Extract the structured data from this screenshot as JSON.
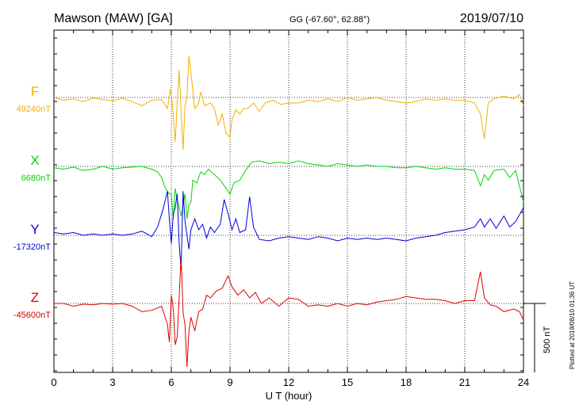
{
  "header": {
    "station": "Mawson (MAW)  [GA]",
    "coords": "GG (-67.60°,  62.88°)",
    "date": "2019/07/10"
  },
  "side_note": "Plotted at 2019/08/10 01:36 UT",
  "scale_label": "500 nT",
  "chart_data": {
    "type": "line",
    "xlabel": "U T (hour)",
    "xlim": [
      0,
      24
    ],
    "xticks": [
      "0",
      "3",
      "6",
      "9",
      "12",
      "15",
      "18",
      "21",
      "24"
    ],
    "scale_bar_nT": 500,
    "grid": true,
    "series": [
      {
        "name": "F",
        "baseline_label": "49240nT",
        "baseline_nT": 49240,
        "color": "#f5b000",
        "points": [
          [
            0,
            0
          ],
          [
            0.5,
            -20
          ],
          [
            1,
            -10
          ],
          [
            1.5,
            -30
          ],
          [
            2,
            -5
          ],
          [
            2.5,
            -15
          ],
          [
            3,
            -25
          ],
          [
            3.5,
            -5
          ],
          [
            4,
            -30
          ],
          [
            4.5,
            -60
          ],
          [
            5,
            -20
          ],
          [
            5.5,
            -15
          ],
          [
            5.8,
            -80
          ],
          [
            5.95,
            60
          ],
          [
            6.05,
            -40
          ],
          [
            6.2,
            -320
          ],
          [
            6.3,
            -40
          ],
          [
            6.4,
            200
          ],
          [
            6.5,
            -100
          ],
          [
            6.6,
            -380
          ],
          [
            6.7,
            -60
          ],
          [
            6.8,
            0
          ],
          [
            6.9,
            300
          ],
          [
            7.0,
            180
          ],
          [
            7.2,
            -80
          ],
          [
            7.4,
            -40
          ],
          [
            7.5,
            40
          ],
          [
            7.7,
            -60
          ],
          [
            8.0,
            -40
          ],
          [
            8.2,
            -80
          ],
          [
            8.4,
            -200
          ],
          [
            8.6,
            -120
          ],
          [
            8.8,
            -260
          ],
          [
            9.0,
            -290
          ],
          [
            9.1,
            -160
          ],
          [
            9.3,
            -90
          ],
          [
            9.5,
            -120
          ],
          [
            9.7,
            -80
          ],
          [
            9.9,
            -80
          ],
          [
            10.2,
            -40
          ],
          [
            10.5,
            -100
          ],
          [
            10.8,
            -40
          ],
          [
            11.2,
            -20
          ],
          [
            11.6,
            -50
          ],
          [
            12.0,
            -40
          ],
          [
            12.5,
            -40
          ],
          [
            13.0,
            -20
          ],
          [
            13.5,
            -30
          ],
          [
            14.0,
            -10
          ],
          [
            14.5,
            -30
          ],
          [
            15.0,
            0
          ],
          [
            15.5,
            -20
          ],
          [
            16.0,
            -10
          ],
          [
            16.5,
            0
          ],
          [
            17.0,
            -20
          ],
          [
            17.5,
            -30
          ],
          [
            18.0,
            -40
          ],
          [
            18.5,
            -30
          ],
          [
            19.0,
            -10
          ],
          [
            19.5,
            -20
          ],
          [
            20.0,
            -10
          ],
          [
            20.5,
            -20
          ],
          [
            21.0,
            -20
          ],
          [
            21.5,
            -40
          ],
          [
            21.8,
            -120
          ],
          [
            22.0,
            -300
          ],
          [
            22.2,
            -40
          ],
          [
            22.5,
            -10
          ],
          [
            23.0,
            10
          ],
          [
            23.5,
            -10
          ],
          [
            23.8,
            20
          ],
          [
            24.0,
            -60
          ]
        ]
      },
      {
        "name": "X",
        "baseline_label": "6680nT",
        "baseline_nT": 6680,
        "color": "#00d800",
        "points": [
          [
            0,
            -10
          ],
          [
            0.5,
            -20
          ],
          [
            1,
            -5
          ],
          [
            1.5,
            -30
          ],
          [
            2,
            -20
          ],
          [
            2.5,
            0
          ],
          [
            3,
            -20
          ],
          [
            3.5,
            -10
          ],
          [
            4,
            -5
          ],
          [
            4.5,
            0
          ],
          [
            5,
            -20
          ],
          [
            5.3,
            -40
          ],
          [
            5.5,
            -80
          ],
          [
            5.7,
            -160
          ],
          [
            5.9,
            -200
          ],
          [
            6.0,
            -200
          ],
          [
            6.1,
            -380
          ],
          [
            6.2,
            -160
          ],
          [
            6.3,
            -240
          ],
          [
            6.4,
            -300
          ],
          [
            6.5,
            -360
          ],
          [
            6.6,
            -280
          ],
          [
            6.7,
            -200
          ],
          [
            6.8,
            -380
          ],
          [
            6.9,
            -280
          ],
          [
            7.0,
            -260
          ],
          [
            7.1,
            -100
          ],
          [
            7.3,
            -120
          ],
          [
            7.5,
            -40
          ],
          [
            7.7,
            -60
          ],
          [
            7.9,
            -20
          ],
          [
            8.2,
            -60
          ],
          [
            8.5,
            -100
          ],
          [
            8.8,
            -160
          ],
          [
            9.0,
            -200
          ],
          [
            9.2,
            -120
          ],
          [
            9.5,
            -100
          ],
          [
            9.8,
            -30
          ],
          [
            10.1,
            30
          ],
          [
            10.5,
            40
          ],
          [
            11.0,
            20
          ],
          [
            11.5,
            30
          ],
          [
            12.0,
            20
          ],
          [
            12.5,
            40
          ],
          [
            13.0,
            20
          ],
          [
            13.5,
            10
          ],
          [
            14.0,
            0
          ],
          [
            14.5,
            20
          ],
          [
            15.0,
            10
          ],
          [
            15.5,
            0
          ],
          [
            16.0,
            10
          ],
          [
            16.5,
            0
          ],
          [
            17.0,
            0
          ],
          [
            17.5,
            -10
          ],
          [
            18.0,
            -10
          ],
          [
            18.5,
            0
          ],
          [
            19.0,
            -10
          ],
          [
            19.5,
            -20
          ],
          [
            20.0,
            -10
          ],
          [
            20.5,
            -20
          ],
          [
            21.0,
            -20
          ],
          [
            21.5,
            -30
          ],
          [
            21.8,
            -140
          ],
          [
            22.0,
            -60
          ],
          [
            22.2,
            -100
          ],
          [
            22.5,
            -30
          ],
          [
            23.0,
            -20
          ],
          [
            23.3,
            -80
          ],
          [
            23.6,
            -30
          ],
          [
            24.0,
            -260
          ]
        ]
      },
      {
        "name": "Y",
        "baseline_label": "-17320nT",
        "baseline_nT": -17320,
        "color": "#0000e0",
        "points": [
          [
            0,
            20
          ],
          [
            0.5,
            10
          ],
          [
            1,
            20
          ],
          [
            1.5,
            0
          ],
          [
            2,
            10
          ],
          [
            2.5,
            0
          ],
          [
            3,
            10
          ],
          [
            3.5,
            0
          ],
          [
            4,
            10
          ],
          [
            4.5,
            30
          ],
          [
            5,
            -10
          ],
          [
            5.3,
            60
          ],
          [
            5.6,
            200
          ],
          [
            5.8,
            320
          ],
          [
            5.9,
            120
          ],
          [
            6.0,
            -60
          ],
          [
            6.1,
            160
          ],
          [
            6.2,
            200
          ],
          [
            6.3,
            300
          ],
          [
            6.4,
            -60
          ],
          [
            6.5,
            -250
          ],
          [
            6.6,
            320
          ],
          [
            6.7,
            100
          ],
          [
            6.9,
            -100
          ],
          [
            7.0,
            40
          ],
          [
            7.2,
            120
          ],
          [
            7.4,
            40
          ],
          [
            7.6,
            80
          ],
          [
            7.8,
            -20
          ],
          [
            8.0,
            60
          ],
          [
            8.2,
            20
          ],
          [
            8.5,
            80
          ],
          [
            8.7,
            260
          ],
          [
            8.9,
            160
          ],
          [
            9.1,
            40
          ],
          [
            9.3,
            120
          ],
          [
            9.5,
            20
          ],
          [
            9.8,
            40
          ],
          [
            10.0,
            280
          ],
          [
            10.2,
            60
          ],
          [
            10.5,
            -30
          ],
          [
            11.0,
            -40
          ],
          [
            11.5,
            -20
          ],
          [
            12.0,
            -10
          ],
          [
            12.5,
            -20
          ],
          [
            13.0,
            -30
          ],
          [
            13.5,
            -10
          ],
          [
            14.0,
            -20
          ],
          [
            14.5,
            -40
          ],
          [
            15.0,
            -20
          ],
          [
            15.5,
            -30
          ],
          [
            16.0,
            -20
          ],
          [
            16.5,
            -30
          ],
          [
            17.0,
            -20
          ],
          [
            17.5,
            -30
          ],
          [
            18.0,
            -40
          ],
          [
            18.5,
            -20
          ],
          [
            19.0,
            -10
          ],
          [
            19.5,
            0
          ],
          [
            20.0,
            20
          ],
          [
            20.5,
            30
          ],
          [
            21.0,
            40
          ],
          [
            21.5,
            60
          ],
          [
            21.8,
            120
          ],
          [
            22.0,
            60
          ],
          [
            22.3,
            120
          ],
          [
            22.6,
            50
          ],
          [
            23.0,
            140
          ],
          [
            23.3,
            60
          ],
          [
            23.6,
            100
          ],
          [
            24.0,
            200
          ]
        ]
      },
      {
        "name": "Z",
        "baseline_label": "-45600nT",
        "baseline_nT": -45600,
        "color": "#e00000",
        "points": [
          [
            0,
            0
          ],
          [
            0.5,
            0
          ],
          [
            1,
            -20
          ],
          [
            1.5,
            -5
          ],
          [
            2,
            -10
          ],
          [
            2.5,
            0
          ],
          [
            3,
            -5
          ],
          [
            3.5,
            0
          ],
          [
            4,
            -20
          ],
          [
            4.5,
            -60
          ],
          [
            5,
            -50
          ],
          [
            5.5,
            -20
          ],
          [
            5.8,
            -150
          ],
          [
            5.9,
            -280
          ],
          [
            6.0,
            60
          ],
          [
            6.1,
            -40
          ],
          [
            6.2,
            -300
          ],
          [
            6.3,
            -240
          ],
          [
            6.4,
            40
          ],
          [
            6.5,
            340
          ],
          [
            6.6,
            -60
          ],
          [
            6.7,
            -160
          ],
          [
            6.8,
            -460
          ],
          [
            6.9,
            -200
          ],
          [
            7.0,
            -100
          ],
          [
            7.2,
            -200
          ],
          [
            7.4,
            -60
          ],
          [
            7.6,
            -40
          ],
          [
            7.8,
            60
          ],
          [
            8.0,
            40
          ],
          [
            8.3,
            90
          ],
          [
            8.6,
            110
          ],
          [
            8.9,
            200
          ],
          [
            9.1,
            120
          ],
          [
            9.4,
            60
          ],
          [
            9.7,
            100
          ],
          [
            10.0,
            40
          ],
          [
            10.3,
            80
          ],
          [
            10.6,
            0
          ],
          [
            11.0,
            40
          ],
          [
            11.5,
            -20
          ],
          [
            12.0,
            40
          ],
          [
            12.5,
            30
          ],
          [
            13.0,
            -20
          ],
          [
            13.5,
            -10
          ],
          [
            14.0,
            -20
          ],
          [
            14.5,
            0
          ],
          [
            15.0,
            -20
          ],
          [
            15.5,
            0
          ],
          [
            16.0,
            -10
          ],
          [
            16.5,
            10
          ],
          [
            17.0,
            20
          ],
          [
            17.5,
            30
          ],
          [
            18.0,
            50
          ],
          [
            18.5,
            40
          ],
          [
            19.0,
            30
          ],
          [
            19.5,
            30
          ],
          [
            20.0,
            20
          ],
          [
            20.5,
            0
          ],
          [
            21.0,
            20
          ],
          [
            21.5,
            20
          ],
          [
            21.8,
            230
          ],
          [
            22.0,
            40
          ],
          [
            22.3,
            -10
          ],
          [
            22.6,
            -20
          ],
          [
            23.0,
            -60
          ],
          [
            23.5,
            -40
          ],
          [
            23.8,
            -60
          ],
          [
            24.0,
            -120
          ]
        ]
      }
    ]
  }
}
